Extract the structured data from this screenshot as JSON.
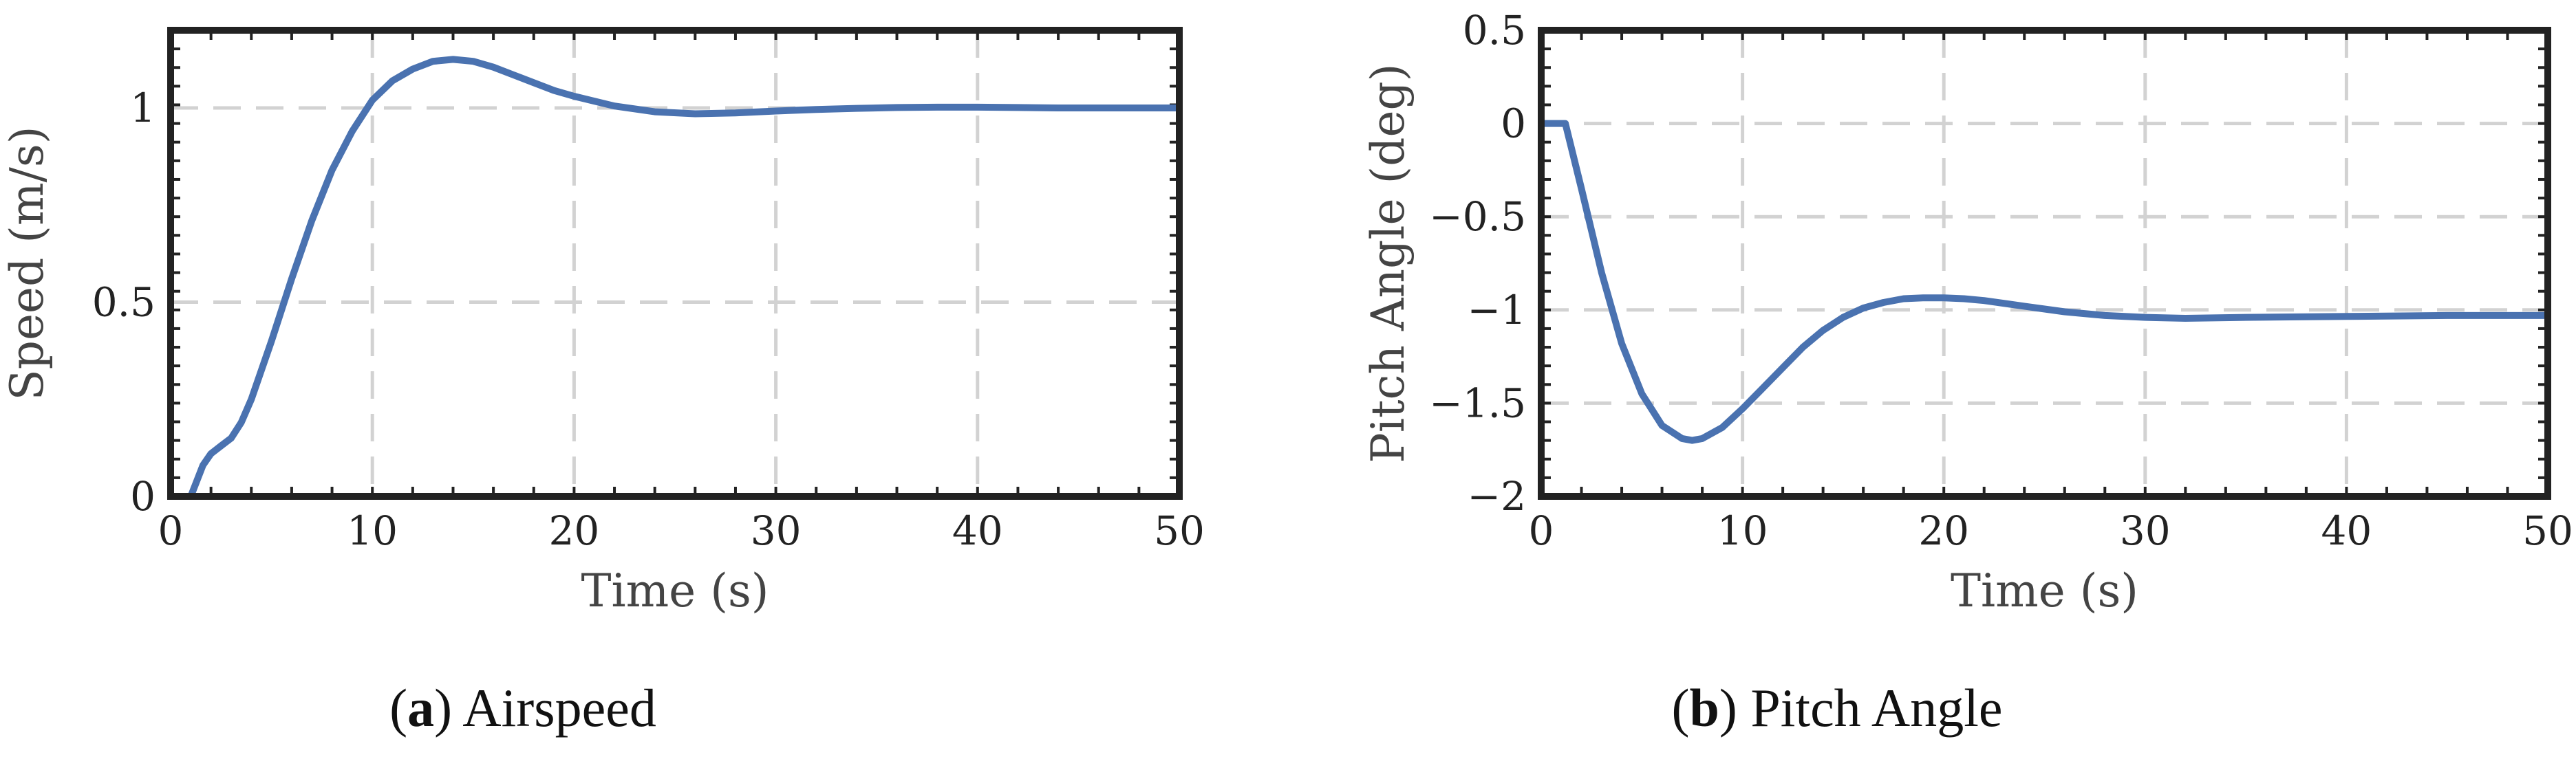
{
  "chart_data": [
    {
      "type": "line",
      "caption_letter": "a",
      "caption_text": "Airspeed",
      "xlabel": "Time (s)",
      "ylabel": "Speed (m/s)",
      "xlim": [
        0,
        50
      ],
      "ylim": [
        0,
        1.2
      ],
      "xticks": [
        0,
        10,
        20,
        30,
        40,
        50
      ],
      "xtick_labels": [
        "0",
        "10",
        "20",
        "30",
        "40",
        "50"
      ],
      "yticks": [
        0,
        0.5,
        1
      ],
      "ytick_labels": [
        "0",
        "0.5",
        "1"
      ],
      "grid": true,
      "line_color": "#4a72b0",
      "series": [
        {
          "x": [
            0,
            0.5,
            1,
            1.3,
            1.6,
            2,
            2.5,
            3,
            3.5,
            4,
            5,
            6,
            7,
            8,
            9,
            10,
            11,
            12,
            13,
            14,
            15,
            16,
            17,
            18,
            19,
            20,
            22,
            24,
            26,
            28,
            30,
            32,
            34,
            36,
            38,
            40,
            42,
            44,
            46,
            48,
            50
          ],
          "values": [
            0,
            0,
            0,
            0.04,
            0.08,
            0.11,
            0.13,
            0.15,
            0.19,
            0.25,
            0.4,
            0.56,
            0.71,
            0.84,
            0.94,
            1.02,
            1.07,
            1.1,
            1.12,
            1.125,
            1.12,
            1.105,
            1.085,
            1.065,
            1.045,
            1.03,
            1.005,
            0.99,
            0.985,
            0.987,
            0.992,
            0.996,
            0.999,
            1.001,
            1.002,
            1.002,
            1.001,
            1.0,
            1.0,
            1.0,
            1.0
          ]
        }
      ]
    },
    {
      "type": "line",
      "caption_letter": "b",
      "caption_text": "Pitch Angle",
      "xlabel": "Time (s)",
      "ylabel": "Pitch Angle (deg)",
      "xlim": [
        0,
        50
      ],
      "ylim": [
        -2,
        0.5
      ],
      "xticks": [
        0,
        10,
        20,
        30,
        40,
        50
      ],
      "xtick_labels": [
        "0",
        "10",
        "20",
        "30",
        "40",
        "50"
      ],
      "yticks": [
        -2,
        -1.5,
        -1,
        -0.5,
        0,
        0.5
      ],
      "ytick_labels": [
        "−2",
        "−1.5",
        "−1",
        "−0.5",
        "0",
        "0.5"
      ],
      "grid": true,
      "line_color": "#4a72b0",
      "series": [
        {
          "x": [
            0,
            1,
            1.2,
            2,
            3,
            4,
            5,
            6,
            7,
            7.5,
            8,
            9,
            10,
            11,
            12,
            13,
            14,
            15,
            16,
            17,
            18,
            19,
            20,
            21,
            22,
            24,
            26,
            28,
            30,
            32,
            35,
            40,
            45,
            50
          ],
          "values": [
            0,
            0,
            0,
            -0.35,
            -0.8,
            -1.18,
            -1.45,
            -1.62,
            -1.69,
            -1.7,
            -1.69,
            -1.63,
            -1.53,
            -1.42,
            -1.31,
            -1.2,
            -1.11,
            -1.04,
            -0.99,
            -0.96,
            -0.94,
            -0.935,
            -0.935,
            -0.94,
            -0.95,
            -0.98,
            -1.01,
            -1.03,
            -1.04,
            -1.045,
            -1.04,
            -1.035,
            -1.03,
            -1.03
          ]
        }
      ]
    }
  ]
}
